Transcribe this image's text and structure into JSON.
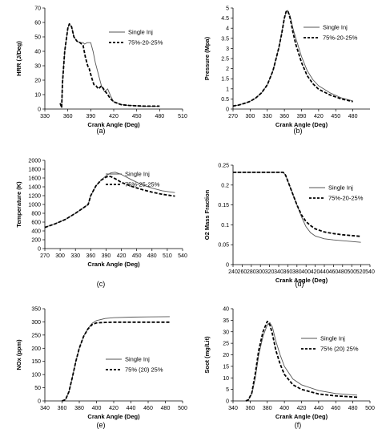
{
  "chart_data": [
    {
      "type": "line",
      "caption": "(a)",
      "xlabel": "Crank Angle (Deg)",
      "ylabel": "HRR (J/Deg)",
      "xlim": [
        330,
        510
      ],
      "ylim": [
        0,
        70
      ],
      "xticks": [
        330,
        360,
        390,
        420,
        450,
        480,
        510
      ],
      "yticks": [
        0,
        10,
        20,
        30,
        40,
        50,
        60,
        70
      ],
      "legend_position": "upper-right",
      "series": [
        {
          "name": "Single Inj",
          "style": "solid-thin",
          "x": [
            350,
            352,
            353,
            356,
            360,
            362,
            365,
            368,
            372,
            376,
            380,
            382,
            385,
            388,
            390,
            393,
            396,
            400,
            404,
            408,
            412,
            416,
            420,
            430,
            440,
            460,
            480
          ],
          "y": [
            4,
            1,
            18,
            40,
            56,
            59,
            57,
            50,
            47,
            46,
            46,
            45,
            46,
            46,
            46,
            40,
            32,
            24,
            16,
            12,
            14,
            9,
            5,
            3,
            2.5,
            2,
            2
          ]
        },
        {
          "name": "75%-20-25%",
          "style": "dashed-thick",
          "x": [
            350,
            352,
            353,
            356,
            360,
            362,
            365,
            368,
            372,
            376,
            380,
            383,
            386,
            388,
            391,
            394,
            397,
            400,
            404,
            408,
            412,
            416,
            420,
            430,
            440,
            460,
            480
          ],
          "y": [
            4,
            1,
            18,
            40,
            56,
            59,
            57,
            50,
            47,
            46,
            44,
            36,
            30,
            28,
            22,
            17,
            16,
            14,
            16,
            13,
            10,
            7,
            5,
            3,
            2.5,
            2,
            2
          ]
        }
      ]
    },
    {
      "type": "line",
      "caption": "(b)",
      "xlabel": "Crank Angle (Deg)",
      "ylabel": "Pressure (Mpa)",
      "xlim": [
        270,
        510
      ],
      "ylim": [
        0,
        5
      ],
      "xticks": [
        270,
        300,
        330,
        360,
        390,
        420,
        450,
        480
      ],
      "yticks": [
        0,
        0.5,
        1,
        1.5,
        2,
        2.5,
        3,
        3.5,
        4,
        4.5,
        5
      ],
      "legend_position": "upper-right",
      "series": [
        {
          "name": "Single Inj",
          "style": "solid-thin",
          "x": [
            270,
            280,
            290,
            300,
            310,
            320,
            330,
            340,
            350,
            355,
            360,
            363,
            366,
            370,
            375,
            380,
            390,
            400,
            410,
            420,
            440,
            460,
            480
          ],
          "y": [
            0.15,
            0.2,
            0.28,
            0.38,
            0.55,
            0.8,
            1.2,
            1.9,
            3.0,
            3.7,
            4.5,
            4.82,
            4.88,
            4.6,
            4.0,
            3.5,
            2.6,
            1.9,
            1.45,
            1.15,
            0.8,
            0.55,
            0.4
          ]
        },
        {
          "name": "75%-20-25%",
          "style": "dashed-thick",
          "x": [
            270,
            280,
            290,
            300,
            310,
            320,
            330,
            340,
            350,
            355,
            360,
            363,
            366,
            370,
            375,
            380,
            390,
            400,
            410,
            420,
            440,
            460,
            480
          ],
          "y": [
            0.15,
            0.2,
            0.28,
            0.38,
            0.55,
            0.8,
            1.2,
            1.9,
            3.0,
            3.7,
            4.5,
            4.82,
            4.86,
            4.5,
            3.8,
            3.2,
            2.3,
            1.65,
            1.25,
            0.98,
            0.7,
            0.5,
            0.37
          ]
        }
      ]
    },
    {
      "type": "line",
      "caption": "(c)",
      "xlabel": "Crank Angle (Deg)",
      "ylabel": "Temperature (K)",
      "xlim": [
        270,
        540
      ],
      "ylim": [
        0,
        2000
      ],
      "xticks": [
        270,
        300,
        330,
        360,
        390,
        420,
        450,
        480,
        510,
        540
      ],
      "yticks": [
        0,
        200,
        400,
        600,
        800,
        1000,
        1200,
        1400,
        1600,
        1800,
        2000
      ],
      "legend_position": "upper-right",
      "series": [
        {
          "name": "Single Inj",
          "style": "solid-thin",
          "x": [
            270,
            290,
            310,
            330,
            345,
            355,
            360,
            370,
            380,
            390,
            400,
            408,
            420,
            440,
            460,
            480,
            500,
            525
          ],
          "y": [
            480,
            560,
            660,
            800,
            920,
            1000,
            1200,
            1420,
            1550,
            1650,
            1720,
            1730,
            1680,
            1560,
            1450,
            1370,
            1310,
            1270
          ]
        },
        {
          "name": "75%-25-25%",
          "style": "dashed-thick",
          "x": [
            270,
            290,
            310,
            330,
            345,
            355,
            360,
            370,
            380,
            390,
            395,
            400,
            410,
            420,
            440,
            460,
            480,
            500,
            525
          ],
          "y": [
            480,
            560,
            660,
            800,
            920,
            1000,
            1200,
            1420,
            1550,
            1620,
            1640,
            1630,
            1570,
            1500,
            1410,
            1340,
            1280,
            1230,
            1190
          ]
        }
      ]
    },
    {
      "type": "line",
      "caption": "(d)",
      "xlabel": "Crank Angle (Deg)",
      "ylabel": "O2 Mass Fraction",
      "xlim": [
        240,
        540
      ],
      "ylim": [
        0,
        0.25
      ],
      "xticks": [
        240,
        260,
        280,
        300,
        320,
        340,
        360,
        380,
        400,
        420,
        440,
        460,
        480,
        500,
        520,
        540
      ],
      "yticks": [
        0,
        0.05,
        0.1,
        0.15,
        0.2,
        0.25
      ],
      "legend_position": "upper-right",
      "series": [
        {
          "name": "Single Inj",
          "style": "solid-thin",
          "x": [
            240,
            300,
            350,
            355,
            360,
            370,
            380,
            390,
            400,
            410,
            420,
            440,
            460,
            480,
            500,
            520
          ],
          "y": [
            0.232,
            0.232,
            0.232,
            0.225,
            0.21,
            0.18,
            0.15,
            0.12,
            0.095,
            0.08,
            0.072,
            0.065,
            0.062,
            0.06,
            0.058,
            0.056
          ]
        },
        {
          "name": "75%-20-25%",
          "style": "dashed-thick",
          "x": [
            240,
            300,
            350,
            355,
            360,
            370,
            380,
            390,
            400,
            410,
            420,
            440,
            460,
            480,
            500,
            520
          ],
          "y": [
            0.232,
            0.232,
            0.232,
            0.225,
            0.21,
            0.18,
            0.15,
            0.125,
            0.108,
            0.098,
            0.09,
            0.082,
            0.078,
            0.075,
            0.073,
            0.071
          ]
        }
      ]
    },
    {
      "type": "line",
      "caption": "(e)",
      "xlabel": "Crank Angle (Deg)",
      "ylabel": "NOx (ppm)",
      "xlim": [
        340,
        500
      ],
      "ylim": [
        0,
        350
      ],
      "xticks": [
        340,
        360,
        380,
        400,
        420,
        440,
        460,
        480,
        500
      ],
      "yticks": [
        0,
        50,
        100,
        150,
        200,
        250,
        300,
        350
      ],
      "legend_position": "right",
      "series": [
        {
          "name": "Single Inj",
          "style": "solid-thin",
          "x": [
            360,
            364,
            368,
            372,
            376,
            380,
            385,
            390,
            395,
            400,
            410,
            420,
            440,
            460,
            485
          ],
          "y": [
            0,
            5,
            35,
            90,
            150,
            200,
            245,
            275,
            295,
            305,
            313,
            316,
            318,
            319,
            320
          ]
        },
        {
          "name": "75% (20) 25%",
          "style": "dashed-thick",
          "x": [
            360,
            364,
            368,
            372,
            376,
            380,
            385,
            390,
            395,
            400,
            410,
            420,
            440,
            460,
            485
          ],
          "y": [
            0,
            5,
            35,
            90,
            150,
            200,
            245,
            273,
            290,
            296,
            298,
            299,
            299,
            299,
            299
          ]
        }
      ]
    },
    {
      "type": "line",
      "caption": "(f)",
      "xlabel": "Crank Angle (Deg)",
      "ylabel": "Soot (mg/Lit)",
      "xlim": [
        340,
        500
      ],
      "ylim": [
        0,
        40
      ],
      "xticks": [
        340,
        360,
        380,
        400,
        420,
        440,
        460,
        480,
        500
      ],
      "yticks": [
        0,
        5,
        10,
        15,
        20,
        25,
        30,
        35,
        40
      ],
      "legend_position": "upper-right",
      "series": [
        {
          "name": "Single Inj",
          "style": "solid-thin",
          "x": [
            355,
            358,
            362,
            366,
            370,
            375,
            380,
            383,
            386,
            390,
            395,
            400,
            410,
            420,
            440,
            460,
            485
          ],
          "y": [
            0,
            0.5,
            3,
            10,
            20,
            28,
            33,
            34,
            32,
            26,
            20,
            15,
            9.5,
            7,
            4.5,
            3.2,
            2.5
          ]
        },
        {
          "name": "75% (20) 25%",
          "style": "dashed-thick",
          "x": [
            355,
            358,
            362,
            366,
            370,
            375,
            380,
            383,
            386,
            390,
            395,
            400,
            410,
            420,
            440,
            460,
            485
          ],
          "y": [
            0,
            0.5,
            3.5,
            12,
            22,
            30,
            34.5,
            33,
            29,
            22,
            16,
            11.5,
            7,
            5,
            3,
            2.2,
            1.6
          ]
        }
      ]
    }
  ]
}
